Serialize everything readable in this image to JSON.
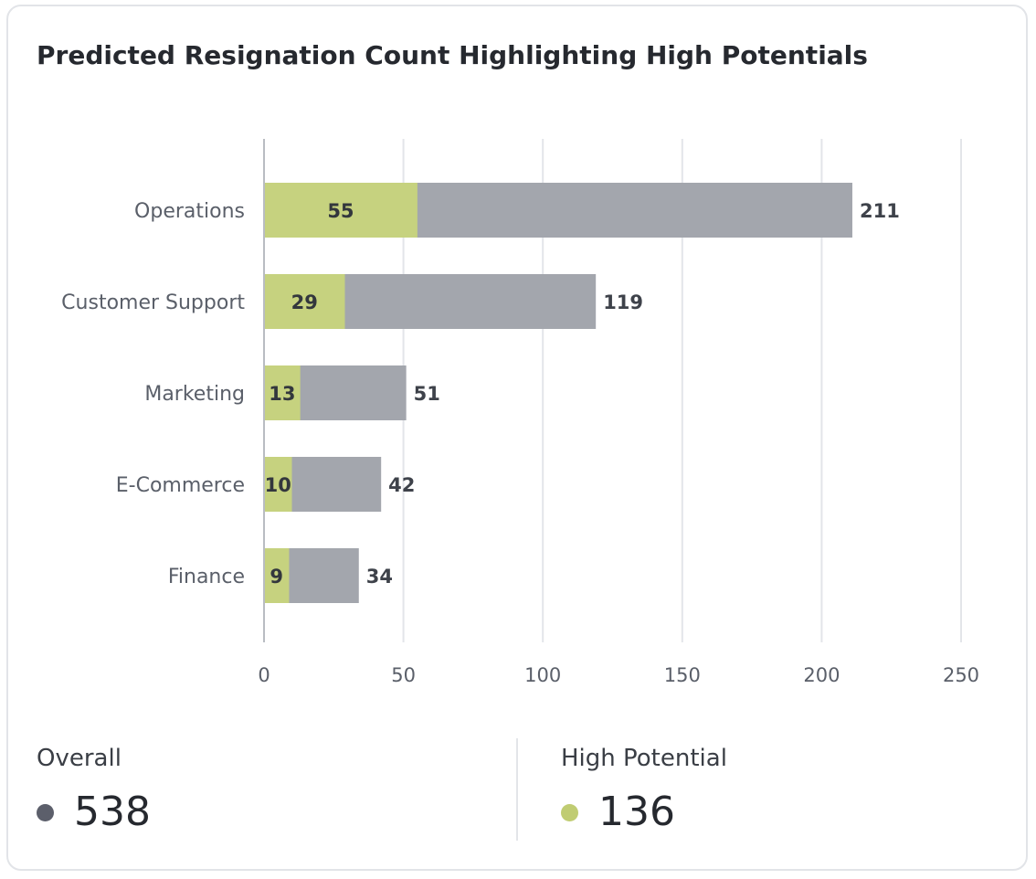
{
  "title": "Predicted Resignation Count Highlighting High Potentials",
  "colors": {
    "overall": "#a3a6ad",
    "high_potential": "#c6d27f",
    "overall_dot": "#5c5f6b",
    "high_potential_dot": "#c0cc72",
    "grid": "#e3e5e9",
    "axis": "#b9bcc2"
  },
  "chart_data": {
    "type": "bar",
    "orientation": "horizontal",
    "stacked": true,
    "title": "Predicted Resignation Count Highlighting High Potentials",
    "categories": [
      "Operations",
      "Customer Support",
      "Marketing",
      "E-Commerce",
      "Finance"
    ],
    "series": [
      {
        "name": "High Potential",
        "values": [
          55,
          29,
          13,
          10,
          9
        ]
      },
      {
        "name": "Overall",
        "values": [
          211,
          119,
          51,
          42,
          34
        ]
      }
    ],
    "totals": [
      211,
      119,
      51,
      42,
      34
    ],
    "xlim": [
      0,
      250
    ],
    "x_ticks": [
      0,
      50,
      100,
      150,
      200,
      250
    ],
    "grid": true
  },
  "summary": {
    "overall": {
      "label": "Overall",
      "value": "538"
    },
    "high_potential": {
      "label": "High Potential",
      "value": "136"
    }
  }
}
